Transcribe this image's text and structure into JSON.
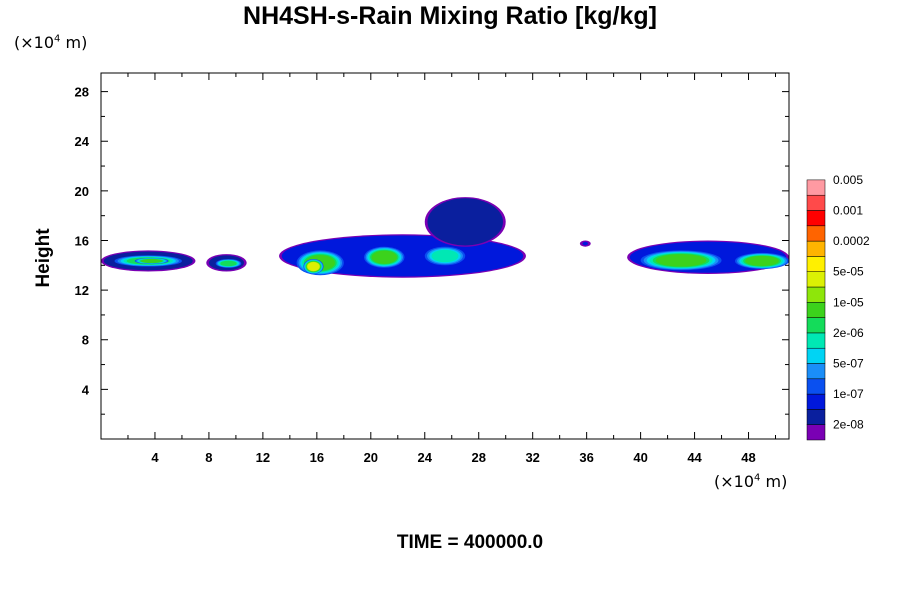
{
  "chart_data": {
    "type": "heatmap",
    "title": "NH4SH-s-Rain Mixing Ratio [kg/kg]",
    "xunit": {
      "prefix": "(×10",
      "exp": "4",
      "suffix": " m)"
    },
    "yunit": {
      "prefix": "(×10",
      "exp": "4",
      "suffix": " m)"
    },
    "ylabel": "Height",
    "xlim": [
      0,
      51
    ],
    "ylim": [
      0,
      29.5
    ],
    "xticks": [
      4,
      8,
      12,
      16,
      20,
      24,
      28,
      32,
      36,
      40,
      44,
      48
    ],
    "yticks": [
      4,
      8,
      12,
      16,
      20,
      24,
      28
    ],
    "xtick_labels": [
      "4",
      "8",
      "12",
      "16",
      "20",
      "24",
      "28",
      "32",
      "36",
      "40",
      "44",
      "48"
    ],
    "ytick_labels": [
      "4",
      "8",
      "12",
      "16",
      "20",
      "24",
      "28"
    ],
    "colorbar": {
      "colors": [
        "#7a00b4",
        "#0a1f9e",
        "#0018dc",
        "#0a50f0",
        "#1a8ef8",
        "#00d4f4",
        "#00e8b4",
        "#14dc5a",
        "#3cd21c",
        "#8ee60a",
        "#dcf004",
        "#fff000",
        "#ffb400",
        "#ff6400",
        "#ff0000",
        "#ff4a4a",
        "#ff9aa2"
      ],
      "labels": [
        "2e-08",
        "1e-07",
        "5e-07",
        "2e-06",
        "1e-05",
        "5e-05",
        "0.0002",
        "0.001",
        "0.005"
      ]
    },
    "regions": [
      {
        "x": [
          0,
          7
        ],
        "y": [
          13.5,
          15.2
        ],
        "level": 1,
        "core": [
          [
            1,
            6,
            13.9,
            14.8,
            7
          ],
          [
            2.5,
            5,
            14.1,
            14.6,
            8
          ]
        ]
      },
      {
        "x": [
          7.8,
          10.8
        ],
        "y": [
          13.5,
          14.9
        ],
        "level": 1,
        "core": [
          [
            8.5,
            10.4,
            13.8,
            14.5,
            7
          ]
        ]
      },
      {
        "x": [
          13.2,
          31.5
        ],
        "y": [
          13.0,
          16.5
        ],
        "level": 2,
        "core": [
          [
            14.5,
            18,
            13.2,
            15.2,
            8
          ],
          [
            15,
            16.5,
            13.3,
            14.5,
            10
          ],
          [
            19.5,
            22.5,
            13.8,
            15.5,
            8
          ],
          [
            24,
            27,
            14,
            15.5,
            6
          ]
        ]
      },
      {
        "x": [
          24,
          30
        ],
        "y": [
          15.5,
          19.5
        ],
        "level": 1,
        "core": [
          [
            25,
            29,
            16.5,
            18.5,
            2
          ]
        ]
      },
      {
        "x": [
          35.5,
          36.3
        ],
        "y": [
          15.5,
          16.0
        ],
        "level": 2,
        "core": []
      },
      {
        "x": [
          39,
          51
        ],
        "y": [
          13.3,
          16.0
        ],
        "level": 2,
        "core": [
          [
            40,
            46,
            13.6,
            15.2,
            8
          ],
          [
            47,
            51,
            13.7,
            15,
            8
          ]
        ]
      }
    ]
  },
  "time_label": "TIME = 400000.0"
}
